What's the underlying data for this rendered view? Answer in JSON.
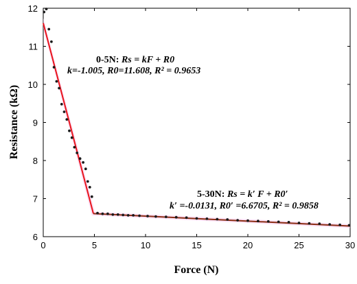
{
  "chart_data": {
    "type": "scatter",
    "title": "",
    "xlabel": "Force  (N)",
    "ylabel": "Resistance  (kΩ)",
    "xlim": [
      0,
      30
    ],
    "ylim": [
      6,
      12
    ],
    "xticks": [
      "0",
      "5",
      "10",
      "15",
      "20",
      "25",
      "30"
    ],
    "yticks": [
      "6",
      "7",
      "8",
      "9",
      "10",
      "11",
      "12"
    ],
    "grid": false,
    "colors": {
      "points": "#1a1a1a",
      "fit_line_1": "#e8141a",
      "fit_line_2": "#8b2d14",
      "band": "#f7c8ef"
    },
    "series": [
      {
        "x": [
          0.08,
          0.3,
          0.55,
          0.8,
          1.05,
          1.3,
          1.55,
          1.8,
          2.05,
          2.3,
          2.55,
          2.8,
          3.05,
          3.3,
          3.6,
          3.9,
          4.15,
          4.35,
          4.55,
          4.75,
          5.3,
          5.8,
          6.3,
          6.8,
          7.3,
          7.8,
          8.3,
          8.8,
          9.4,
          10.2,
          11.0,
          12.0,
          13.0,
          14.0,
          15.0,
          16.0,
          17.0,
          18.0,
          19.0,
          20.0,
          21.0,
          22.0,
          23.0,
          24.0,
          25.0,
          26.0,
          27.0,
          28.0,
          29.0,
          29.9
        ],
        "values": [
          11.9,
          11.98,
          11.45,
          11.12,
          10.45,
          10.08,
          9.9,
          9.48,
          9.28,
          9.08,
          8.78,
          8.6,
          8.35,
          8.2,
          8.05,
          7.95,
          7.78,
          7.45,
          7.3,
          7.05,
          6.62,
          6.6,
          6.6,
          6.58,
          6.58,
          6.57,
          6.56,
          6.56,
          6.55,
          6.54,
          6.53,
          6.52,
          6.51,
          6.5,
          6.48,
          6.47,
          6.46,
          6.45,
          6.43,
          6.42,
          6.41,
          6.4,
          6.39,
          6.38,
          6.36,
          6.35,
          6.34,
          6.32,
          6.31,
          6.3
        ]
      }
    ],
    "fits": [
      {
        "x_range": [
          0,
          5
        ],
        "k": -1.005,
        "r0": 11.608,
        "line_x_end": 4.9
      },
      {
        "x_range": [
          4.9,
          30
        ],
        "k": -0.0131,
        "r0": 6.6705
      }
    ],
    "annotations": {
      "fit1": {
        "head": "0-5N: ",
        "formula": "Rs = kF + R0",
        "params": "k=-1.005, R0=11.608, R² = 0.9653"
      },
      "fit2": {
        "head": "5-30N: ",
        "formula": "Rs = k′ F + R0′",
        "params": "k′ =-0.0131, R0′ =6.6705, R² = 0.9858"
      }
    }
  }
}
